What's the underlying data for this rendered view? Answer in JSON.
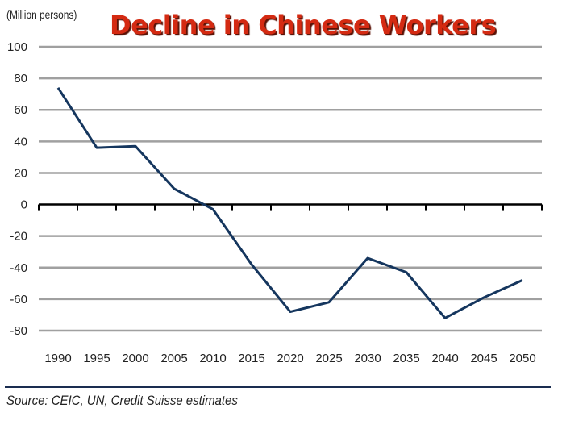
{
  "chart_data": {
    "type": "line",
    "title": "Decline in Chinese Workers",
    "ylabel": "(Million persons)",
    "xlabel": "",
    "categories": [
      "1990",
      "1995",
      "2000",
      "2005",
      "2010",
      "2015",
      "2020",
      "2025",
      "2030",
      "2035",
      "2040",
      "2045",
      "2050"
    ],
    "values": [
      74,
      36,
      37,
      10,
      -3,
      -38,
      -68,
      -62,
      -34,
      -43,
      -72,
      -59,
      -48
    ],
    "ylim": [
      -80,
      100
    ],
    "yticks": [
      100,
      80,
      60,
      40,
      20,
      0,
      -20,
      -40,
      -60,
      -80
    ],
    "grid": true,
    "colors": {
      "line": "#15365e",
      "grid": "#a0a0a0",
      "title": "#d42a12"
    }
  },
  "source": "Source: CEIC, UN, Credit Suisse estimates"
}
